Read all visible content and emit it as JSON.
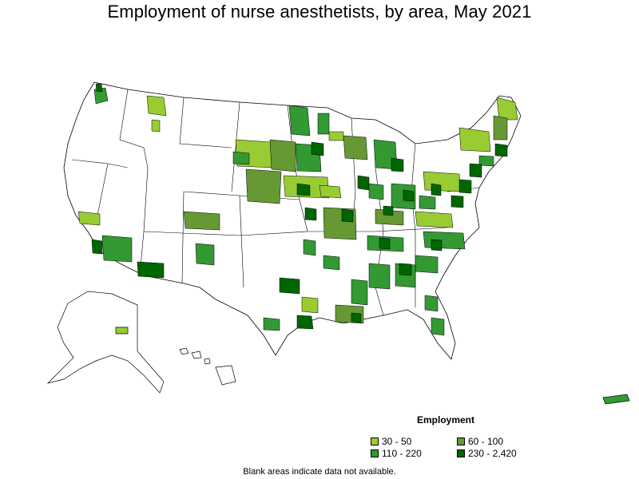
{
  "title": "Employment of nurse anesthetists, by area, May 2021",
  "legend": {
    "title": "Employment",
    "items": [
      {
        "label": "30 - 50",
        "color": "#99cc33"
      },
      {
        "label": "60 - 100",
        "color": "#669933"
      },
      {
        "label": "110 - 220",
        "color": "#339933"
      },
      {
        "label": "230 - 2,420",
        "color": "#006600"
      }
    ]
  },
  "footnote": "Blank areas indicate data not available.",
  "colors": {
    "background": "#ffffff",
    "border": "#000000",
    "no_data": "#ffffff"
  }
}
